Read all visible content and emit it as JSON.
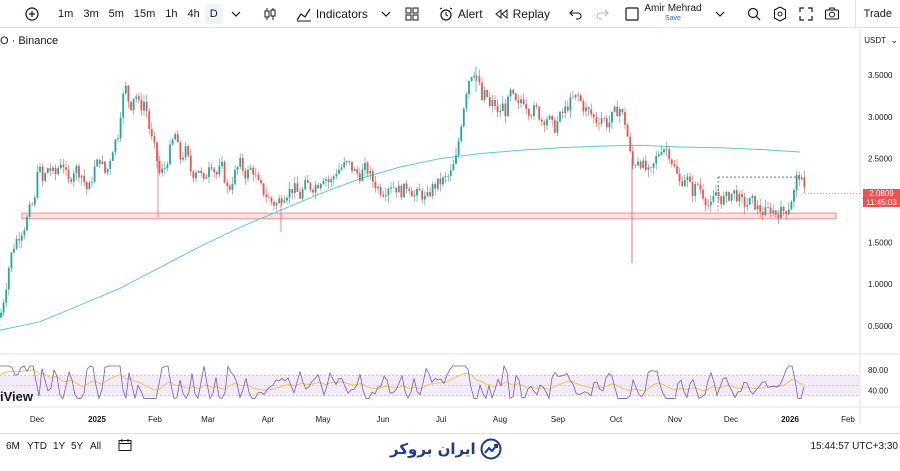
{
  "toolbar": {
    "intervals": [
      "1m",
      "3m",
      "5m",
      "15m",
      "1h",
      "4h",
      "D"
    ],
    "active_interval": "D",
    "indicators_label": "Indicators",
    "alert_label": "Alert",
    "replay_label": "Replay",
    "user_name": "Amir Mehrad",
    "user_save": "Save",
    "trade_label": "Trade"
  },
  "chart": {
    "symbol": "O · Binance",
    "currency": "USDT",
    "last_price": "2.0809",
    "countdown": "11:45:03",
    "brand": "iView",
    "colors": {
      "up": "#26a69a",
      "down": "#ef5350",
      "ma": "#5bc8dc",
      "rsi": "#7e57c2",
      "rsi_ma": "#f5c242",
      "zone": "#f8c9c9"
    }
  },
  "chart_data": {
    "type": "candlestick",
    "price_axis_ticks": [
      "3.5000",
      "3.0000",
      "2.5000",
      "2.0000",
      "1.5000",
      "1.0000",
      "0.5000"
    ],
    "rsi_axis_ticks": [
      "80.00",
      "40.00"
    ],
    "time_axis_ticks": [
      "Dec",
      "2025",
      "Feb",
      "Mar",
      "Apr",
      "May",
      "Jun",
      "Jul",
      "Aug",
      "Sep",
      "Oct",
      "Nov",
      "Dec",
      "2026",
      "Feb"
    ],
    "price_range": [
      0.3,
      3.8
    ],
    "support_zone": [
      1.78,
      1.85
    ],
    "resistance_dotted": 2.28,
    "close_path": [
      [
        0,
        0.6
      ],
      [
        5,
        0.9
      ],
      [
        10,
        1.3
      ],
      [
        15,
        1.5
      ],
      [
        20,
        1.6
      ],
      [
        25,
        1.7
      ],
      [
        30,
        1.9
      ],
      [
        35,
        2.0
      ],
      [
        38,
        2.5
      ],
      [
        42,
        2.2
      ],
      [
        48,
        2.4
      ],
      [
        55,
        2.3
      ],
      [
        62,
        2.5
      ],
      [
        68,
        2.2
      ],
      [
        75,
        2.4
      ],
      [
        82,
        2.3
      ],
      [
        88,
        2.1
      ],
      [
        95,
        2.4
      ],
      [
        100,
        2.5
      ],
      [
        106,
        2.3
      ],
      [
        112,
        2.6
      ],
      [
        118,
        2.8
      ],
      [
        122,
        3.2
      ],
      [
        126,
        3.35
      ],
      [
        130,
        3.1
      ],
      [
        135,
        3.3
      ],
      [
        140,
        3.1
      ],
      [
        145,
        3.2
      ],
      [
        150,
        2.8
      ],
      [
        155,
        2.6
      ],
      [
        160,
        2.3
      ],
      [
        165,
        2.4
      ],
      [
        170,
        2.6
      ],
      [
        175,
        2.8
      ],
      [
        180,
        2.5
      ],
      [
        186,
        2.6
      ],
      [
        192,
        2.3
      ],
      [
        198,
        2.4
      ],
      [
        204,
        2.2
      ],
      [
        210,
        2.5
      ],
      [
        216,
        2.3
      ],
      [
        222,
        2.4
      ],
      [
        228,
        2.1
      ],
      [
        234,
        2.3
      ],
      [
        240,
        2.45
      ],
      [
        246,
        2.3
      ],
      [
        252,
        2.4
      ],
      [
        258,
        2.2
      ],
      [
        264,
        2.1
      ],
      [
        270,
        2.0
      ],
      [
        276,
        1.95
      ],
      [
        282,
        2.05
      ],
      [
        288,
        2.1
      ],
      [
        294,
        2.15
      ],
      [
        300,
        2.05
      ],
      [
        306,
        2.2
      ],
      [
        312,
        2.15
      ],
      [
        318,
        2.2
      ],
      [
        324,
        2.3
      ],
      [
        330,
        2.2
      ],
      [
        336,
        2.35
      ],
      [
        342,
        2.4
      ],
      [
        348,
        2.45
      ],
      [
        354,
        2.35
      ],
      [
        360,
        2.3
      ],
      [
        366,
        2.4
      ],
      [
        372,
        2.25
      ],
      [
        378,
        2.15
      ],
      [
        384,
        2.1
      ],
      [
        390,
        2.2
      ],
      [
        396,
        2.15
      ],
      [
        402,
        2.1
      ],
      [
        408,
        2.2
      ],
      [
        414,
        2.05
      ],
      [
        420,
        2.1
      ],
      [
        426,
        2.0
      ],
      [
        432,
        2.15
      ],
      [
        438,
        2.2
      ],
      [
        444,
        2.25
      ],
      [
        450,
        2.3
      ],
      [
        456,
        2.5
      ],
      [
        462,
        3.0
      ],
      [
        466,
        3.3
      ],
      [
        470,
        3.5
      ],
      [
        474,
        3.55
      ],
      [
        478,
        3.45
      ],
      [
        482,
        3.2
      ],
      [
        486,
        3.3
      ],
      [
        490,
        3.1
      ],
      [
        494,
        3.2
      ],
      [
        498,
        3.0
      ],
      [
        502,
        3.15
      ],
      [
        506,
        3.05
      ],
      [
        510,
        3.3
      ],
      [
        514,
        3.2
      ],
      [
        518,
        3.1
      ],
      [
        522,
        3.25
      ],
      [
        526,
        3.15
      ],
      [
        530,
        3.05
      ],
      [
        536,
        3.1
      ],
      [
        542,
        2.95
      ],
      [
        548,
        3.0
      ],
      [
        554,
        2.85
      ],
      [
        560,
        3.0
      ],
      [
        566,
        3.1
      ],
      [
        572,
        3.2
      ],
      [
        578,
        3.25
      ],
      [
        584,
        3.1
      ],
      [
        590,
        3.05
      ],
      [
        596,
        2.95
      ],
      [
        602,
        3.0
      ],
      [
        608,
        2.9
      ],
      [
        614,
        3.05
      ],
      [
        620,
        3.1
      ],
      [
        626,
        2.9
      ],
      [
        632,
        2.4
      ],
      [
        638,
        2.5
      ],
      [
        644,
        2.4
      ],
      [
        650,
        2.3
      ],
      [
        656,
        2.5
      ],
      [
        662,
        2.65
      ],
      [
        668,
        2.6
      ],
      [
        674,
        2.4
      ],
      [
        680,
        2.2
      ],
      [
        686,
        2.3
      ],
      [
        692,
        2.1
      ],
      [
        698,
        2.2
      ],
      [
        704,
        2.05
      ],
      [
        710,
        1.9
      ],
      [
        716,
        2.1
      ],
      [
        722,
        2.0
      ],
      [
        728,
        2.05
      ],
      [
        734,
        2.1
      ],
      [
        740,
        2.0
      ],
      [
        746,
        1.95
      ],
      [
        752,
        2.0
      ],
      [
        758,
        1.9
      ],
      [
        764,
        1.85
      ],
      [
        770,
        1.9
      ],
      [
        776,
        1.85
      ],
      [
        782,
        1.87
      ],
      [
        788,
        1.9
      ],
      [
        794,
        2.1
      ],
      [
        798,
        2.35
      ],
      [
        802,
        2.2
      ],
      [
        805,
        2.08
      ]
    ],
    "ma_path": [
      [
        0,
        0.45
      ],
      [
        40,
        0.55
      ],
      [
        80,
        0.75
      ],
      [
        120,
        0.95
      ],
      [
        160,
        1.2
      ],
      [
        200,
        1.45
      ],
      [
        240,
        1.68
      ],
      [
        280,
        1.88
      ],
      [
        320,
        2.08
      ],
      [
        360,
        2.26
      ],
      [
        400,
        2.4
      ],
      [
        440,
        2.5
      ],
      [
        480,
        2.56
      ],
      [
        520,
        2.6
      ],
      [
        560,
        2.63
      ],
      [
        600,
        2.65
      ],
      [
        640,
        2.66
      ],
      [
        680,
        2.64
      ],
      [
        720,
        2.63
      ],
      [
        760,
        2.61
      ],
      [
        800,
        2.58
      ]
    ]
  },
  "bottombar": {
    "ranges": [
      "6M",
      "YTD",
      "1Y",
      "5Y",
      "All"
    ],
    "time": "15:44:57 UTC+3:30",
    "logo_text": "ایران بروکر"
  }
}
